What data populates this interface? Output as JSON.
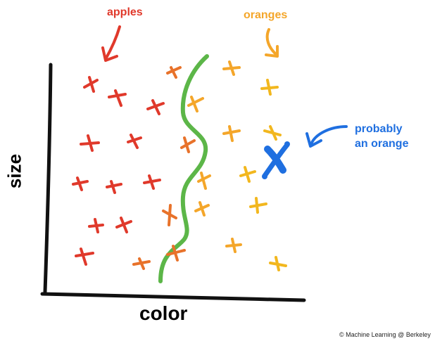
{
  "labels": {
    "apples": "apples",
    "oranges": "oranges",
    "probably_line1": "probably",
    "probably_line2": "an orange",
    "xaxis": "color",
    "yaxis": "size",
    "credit": "© Machine Learning @ Berkeley"
  },
  "colors": {
    "apple": "#e0392b",
    "apple_dark": "#c9302c",
    "mid_orange": "#e8722a",
    "orange": "#f4a62a",
    "yellow": "#f2b71e",
    "blue": "#1f6fe0",
    "green": "#5cb648",
    "axis": "#111111"
  }
}
